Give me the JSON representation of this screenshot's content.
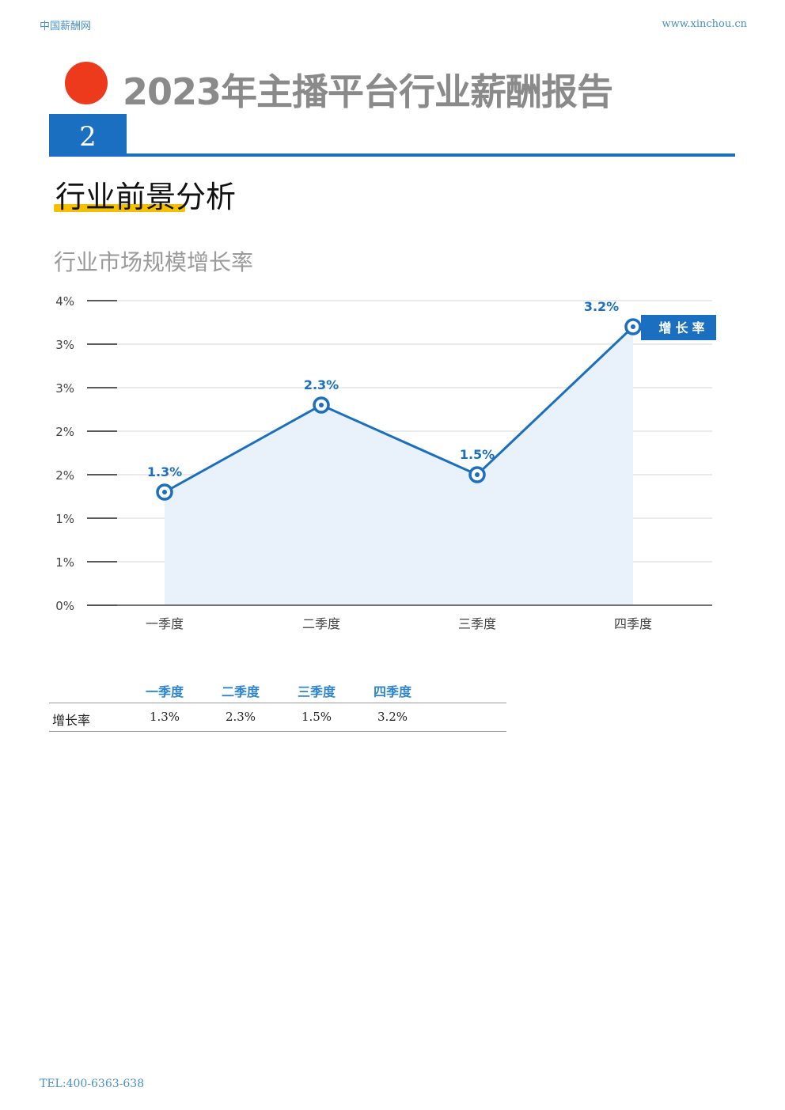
{
  "header": {
    "site_name": "中国薪酬网",
    "url": "www.xinchou.cn"
  },
  "report": {
    "title": "2023年主播平台行业薪酬报告"
  },
  "section": {
    "number": "2",
    "heading": "行业前景分析"
  },
  "chart_title": "行业市场规模增长率",
  "colors": {
    "accent": "#1a6fc0",
    "dot": "#ee3a1c",
    "underline": "#f5c000",
    "area": "#e9f1fa"
  },
  "chart_data": {
    "type": "area",
    "categories": [
      "一季度",
      "二季度",
      "三季度",
      "四季度"
    ],
    "series": [
      {
        "name": "增长率",
        "values": [
          1.3,
          2.3,
          1.5,
          3.2
        ]
      }
    ],
    "data_labels": [
      "1.3%",
      "2.3%",
      "1.5%",
      "3.2%"
    ],
    "y_ticks": [
      "0%",
      "1%",
      "1%",
      "2%",
      "2%",
      "3%",
      "3%",
      "4%"
    ],
    "ylim": [
      0,
      3.5
    ],
    "legend": "top-right",
    "grid": true
  },
  "table": {
    "headers": [
      "一季度",
      "二季度",
      "三季度",
      "四季度"
    ],
    "row_label": "增长率",
    "values": [
      "1.3%",
      "2.3%",
      "1.5%",
      "3.2%"
    ]
  },
  "footer": {
    "tel": "TEL:400-6363-638"
  }
}
